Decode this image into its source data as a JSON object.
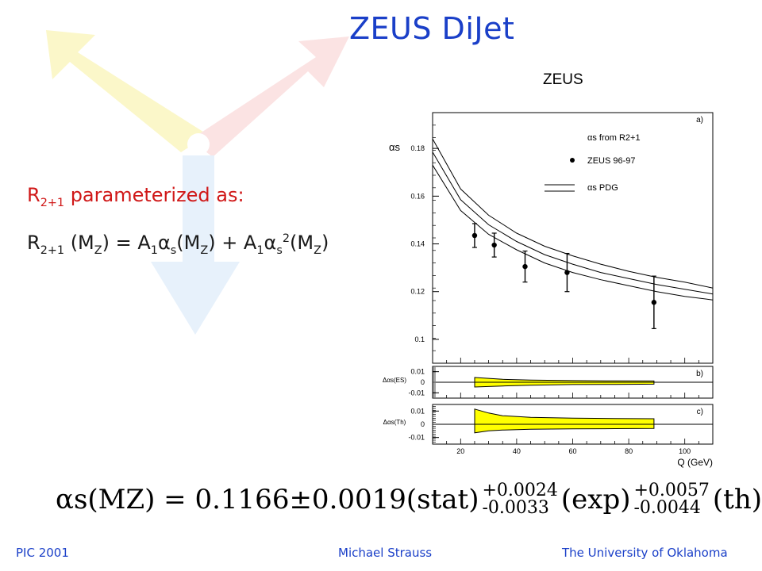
{
  "slide": {
    "title": "ZEUS DiJet",
    "param_line": {
      "r": "R",
      "sub": "2+1",
      "rest": " parameterized as:"
    },
    "equation": {
      "r": "R",
      "r_sub": "2+1",
      "mz_open": " (M",
      "z1": "Z",
      "mz_close": ") = A",
      "a1": "1",
      "alpha": "α",
      "s1": "s",
      "mz2_open": "(M",
      "z2": "Z",
      "mid": ") + A",
      "a2": "1",
      "alpha2": "α",
      "s2": "s",
      "sq": "2",
      "mz3_open": "(M",
      "z3": "Z",
      "end": ")"
    },
    "result": {
      "lhs": "αs(MZ) = 0.1166±0.0019(stat)",
      "exp_plus": "+0.0024",
      "exp_minus": "-0.0033",
      "exp_label": "(exp)",
      "th_plus": "+0.0057",
      "th_minus": "-0.0044",
      "th_label": "(th)"
    },
    "footer": {
      "left": "PIC 2001",
      "center": "Michael Strauss",
      "right": "The University of Oklahoma"
    }
  },
  "chart_data": {
    "type": "scatter",
    "title": "ZEUS",
    "xlabel": "Q (GeV)",
    "xlim": [
      10,
      110
    ],
    "xticks": [
      "20",
      "40",
      "60",
      "80",
      "100"
    ],
    "panels": [
      {
        "label": "a)",
        "ylabel": "αs",
        "ylim": [
          0.09,
          0.195
        ],
        "yticks": [
          "0.1",
          "0.12",
          "0.14",
          "0.16",
          "0.18"
        ],
        "legend": [
          "αs from R2+1",
          "ZEUS 96-97",
          "αs PDG"
        ],
        "points": [
          {
            "x": 25,
            "y": 0.1435,
            "err": 0.005
          },
          {
            "x": 32,
            "y": 0.1395,
            "err": 0.005
          },
          {
            "x": 43,
            "y": 0.1305,
            "err": 0.0065
          },
          {
            "x": 58,
            "y": 0.128,
            "err": 0.008
          },
          {
            "x": 89,
            "y": 0.1155,
            "err": 0.011
          }
        ],
        "curves": [
          {
            "x": [
              10,
              20,
              30,
              40,
              50,
              60,
              70,
              80,
              90,
              100,
              110
            ],
            "y": [
              0.184,
              0.163,
              0.152,
              0.1445,
              0.139,
              0.135,
              0.1315,
              0.1285,
              0.126,
              0.124,
              0.1215
            ]
          },
          {
            "x": [
              10,
              20,
              30,
              40,
              50,
              60,
              70,
              80,
              90,
              100,
              110
            ],
            "y": [
              0.1785,
              0.1585,
              0.148,
              0.141,
              0.1355,
              0.1315,
              0.128,
              0.1255,
              0.123,
              0.121,
              0.119
            ]
          },
          {
            "x": [
              10,
              20,
              30,
              40,
              50,
              60,
              70,
              80,
              90,
              100,
              110
            ],
            "y": [
              0.173,
              0.154,
              0.144,
              0.1375,
              0.132,
              0.128,
              0.125,
              0.1225,
              0.12,
              0.118,
              0.1165
            ]
          }
        ]
      },
      {
        "label": "b)",
        "ylabel": "Δαs(ES)",
        "ylim": [
          -0.015,
          0.015
        ],
        "yticks": [
          "0.01",
          "0",
          "-0.01"
        ],
        "band": {
          "x": [
            25,
            35,
            45,
            60,
            75,
            89
          ],
          "upper": [
            0.0045,
            0.0028,
            0.002,
            0.0016,
            0.0013,
            0.0012
          ],
          "lower": [
            -0.0045,
            -0.0035,
            -0.0028,
            -0.0022,
            -0.002,
            -0.0018
          ]
        }
      },
      {
        "label": "c)",
        "ylabel": "Δαs(Th)",
        "ylim": [
          -0.015,
          0.015
        ],
        "yticks": [
          "0.01",
          "0",
          "-0.01"
        ],
        "band": {
          "x": [
            25,
            30,
            35,
            45,
            60,
            75,
            89
          ],
          "upper": [
            0.0115,
            0.0085,
            0.0065,
            0.0052,
            0.0047,
            0.0044,
            0.0042
          ],
          "lower": [
            -0.0065,
            -0.005,
            -0.0044,
            -0.0038,
            -0.0035,
            -0.0033,
            -0.0032
          ]
        }
      }
    ]
  }
}
